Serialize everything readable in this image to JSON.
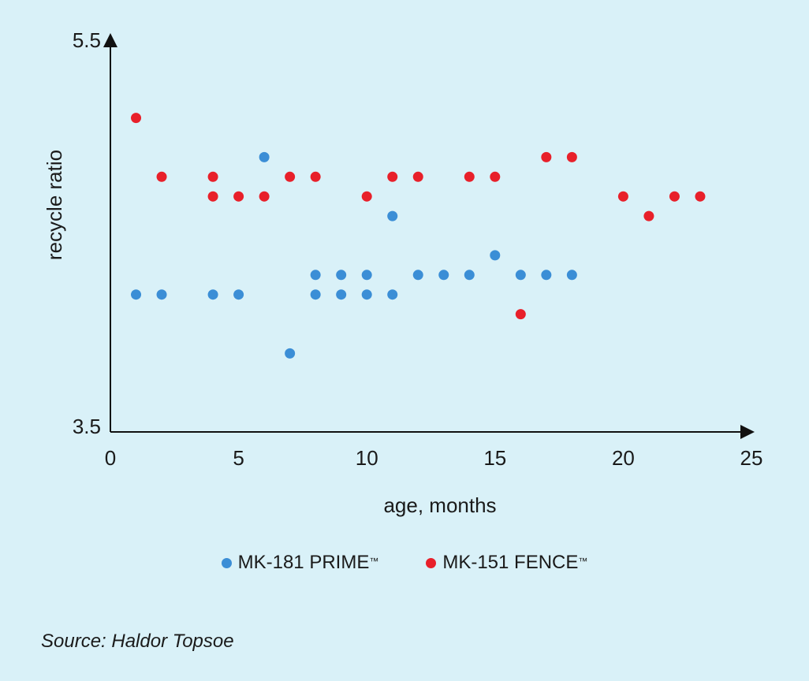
{
  "chart_data": {
    "type": "scatter",
    "xlabel": "age, months",
    "ylabel": "recycle ratio",
    "xlim": [
      0,
      25
    ],
    "ylim": [
      3.5,
      5.5
    ],
    "x_ticks": [
      0,
      5,
      10,
      15,
      20,
      25
    ],
    "y_tick_labels": [
      "5.5",
      "3.5"
    ],
    "grid": false,
    "legend_position": "bottom",
    "series": [
      {
        "name": "MK-181 PRIME",
        "color": "#3b8ed6",
        "points": [
          [
            1,
            4.2
          ],
          [
            2,
            4.2
          ],
          [
            4,
            4.2
          ],
          [
            5,
            4.2
          ],
          [
            6,
            4.9
          ],
          [
            7,
            3.9
          ],
          [
            8,
            4.3
          ],
          [
            8,
            4.2
          ],
          [
            9,
            4.3
          ],
          [
            9,
            4.2
          ],
          [
            10,
            4.3
          ],
          [
            10,
            4.2
          ],
          [
            11,
            4.6
          ],
          [
            11,
            4.2
          ],
          [
            12,
            4.3
          ],
          [
            13,
            4.3
          ],
          [
            14,
            4.3
          ],
          [
            15,
            4.4
          ],
          [
            16,
            4.3
          ],
          [
            17,
            4.3
          ],
          [
            18,
            4.3
          ]
        ]
      },
      {
        "name": "MK-151 FENCE",
        "color": "#e8202a",
        "points": [
          [
            1,
            5.1
          ],
          [
            2,
            4.8
          ],
          [
            4,
            4.8
          ],
          [
            4,
            4.7
          ],
          [
            5,
            4.7
          ],
          [
            6,
            4.7
          ],
          [
            7,
            4.8
          ],
          [
            8,
            4.8
          ],
          [
            10,
            4.7
          ],
          [
            11,
            4.8
          ],
          [
            12,
            4.8
          ],
          [
            14,
            4.8
          ],
          [
            15,
            4.8
          ],
          [
            16,
            4.1
          ],
          [
            17,
            4.9
          ],
          [
            18,
            4.9
          ],
          [
            20,
            4.7
          ],
          [
            21,
            4.6
          ],
          [
            22,
            4.7
          ],
          [
            23,
            4.7
          ]
        ]
      }
    ]
  },
  "legend": {
    "items": [
      {
        "label": "MK-181 PRIME",
        "mark": "™",
        "color": "#3b8ed6"
      },
      {
        "label": "MK-151 FENCE",
        "mark": "™",
        "color": "#e8202a"
      }
    ]
  },
  "source": "Source: Haldor Topsoe"
}
